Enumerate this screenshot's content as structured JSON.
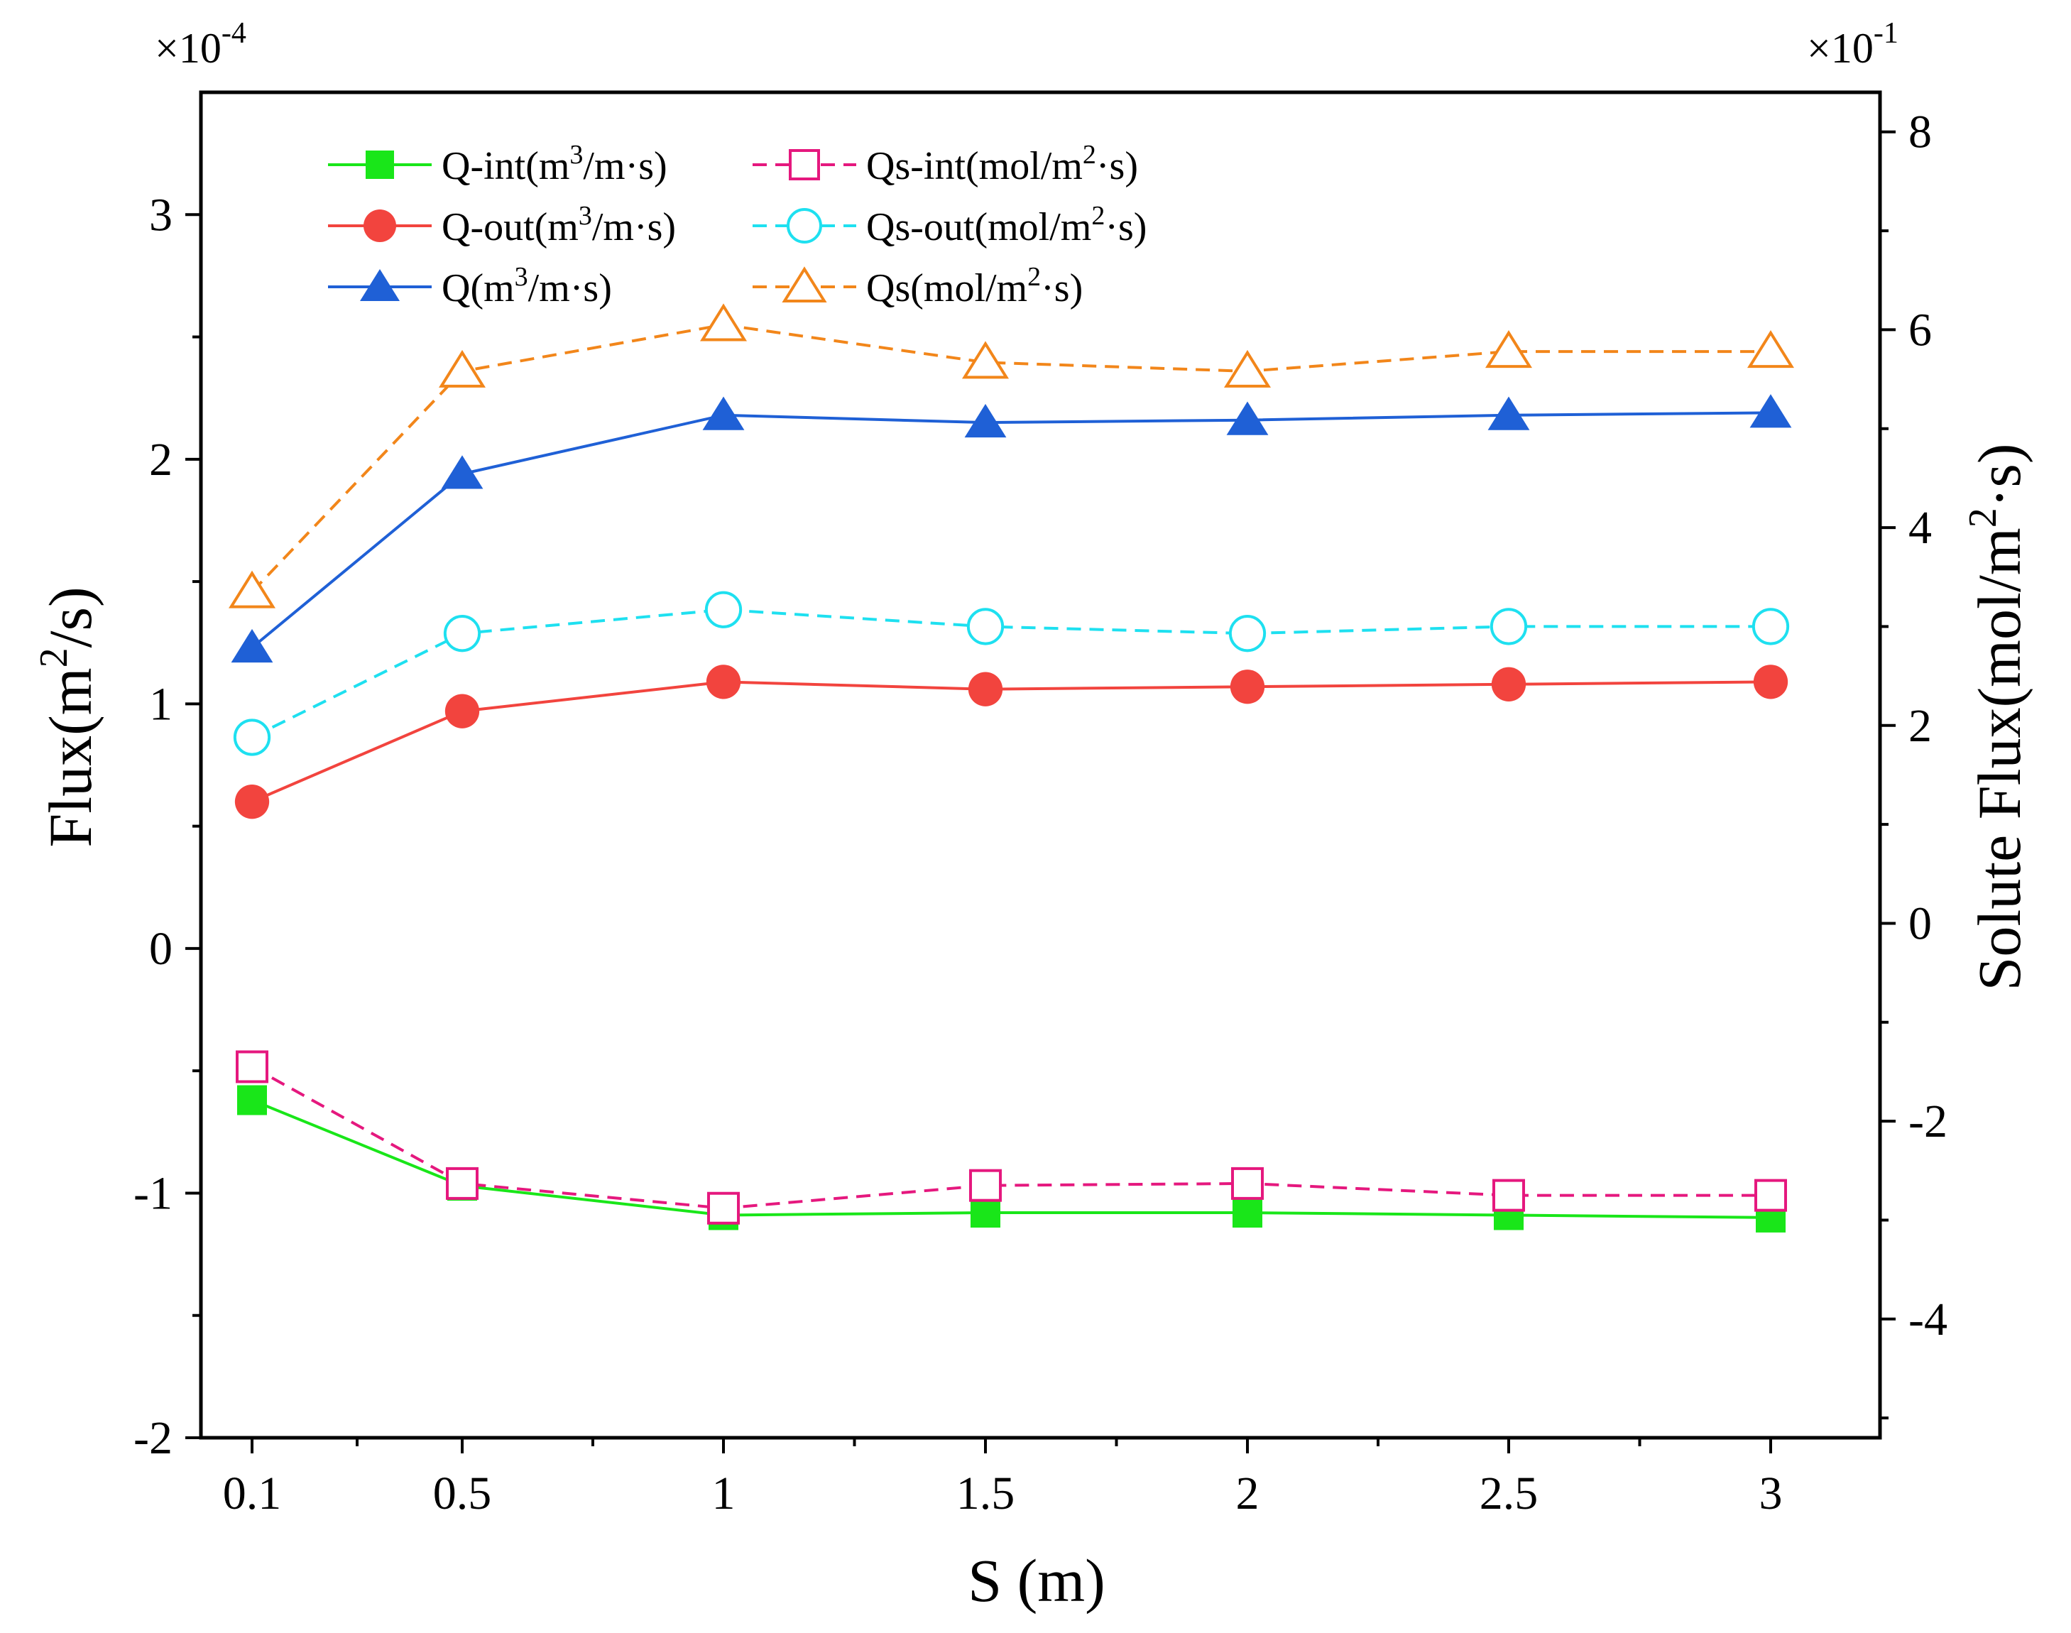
{
  "chart_data": {
    "type": "line",
    "categories": [
      "0.1",
      "0.5",
      "1",
      "1.5",
      "2",
      "2.5",
      "3"
    ],
    "xlabel": "S (m)",
    "ylabel_left": {
      "base": "Flux(m",
      "sup": "2",
      "rest": "/s)"
    },
    "ylabel_right": {
      "base": "Solute  Flux(mol/m",
      "sup": "2",
      "rest": "·s)"
    },
    "left_axis": {
      "range": [
        -2,
        3.5
      ],
      "ticks": [
        "3",
        "2",
        "1",
        "0",
        "-1",
        "-2"
      ],
      "tick_values": [
        3,
        2,
        1,
        0,
        -1,
        -2
      ],
      "multiplier": {
        "base": "×10",
        "exp": "-4"
      }
    },
    "right_axis": {
      "range": [
        -5.2,
        8.4
      ],
      "ticks": [
        "8",
        "6",
        "4",
        "2",
        "0",
        "-2",
        "-4"
      ],
      "tick_values": [
        8,
        6,
        4,
        2,
        0,
        -2,
        -4
      ],
      "multiplier": {
        "base": "×10",
        "exp": "-1"
      }
    },
    "series": [
      {
        "id": "q-int",
        "name": "Q-int(m³/m·s)",
        "legend": {
          "pre": "Q-int(m",
          "sup": "3",
          "post": "/m·s)"
        },
        "axis": "left",
        "marker": "square",
        "filled": true,
        "dashed": false,
        "color": "#19e619",
        "values": [
          -0.62,
          -0.97,
          -1.09,
          -1.08,
          -1.08,
          -1.09,
          -1.1
        ]
      },
      {
        "id": "q-out",
        "name": "Q-out(m³/m·s)",
        "legend": {
          "pre": "Q-out(m",
          "sup": "3",
          "post": "/m·s)"
        },
        "axis": "left",
        "marker": "circle",
        "filled": true,
        "dashed": false,
        "color": "#f2443e",
        "values": [
          0.6,
          0.97,
          1.09,
          1.06,
          1.07,
          1.08,
          1.09
        ]
      },
      {
        "id": "q",
        "name": "Q(m³/m·s)",
        "legend": {
          "pre": "Q(m",
          "sup": "3",
          "post": "/m·s)"
        },
        "axis": "left",
        "marker": "triangle",
        "filled": true,
        "dashed": false,
        "color": "#1f60d6",
        "values": [
          1.23,
          1.94,
          2.18,
          2.15,
          2.16,
          2.18,
          2.19
        ]
      },
      {
        "id": "qs-int",
        "name": "Qs-int(mol/m²·s)",
        "legend": {
          "pre": "Qs-int(mol/m",
          "sup": "2",
          "post": "·s)"
        },
        "axis": "right",
        "marker": "square",
        "filled": false,
        "dashed": true,
        "color": "#e5187e",
        "values": [
          -1.45,
          -2.63,
          -2.88,
          -2.65,
          -2.63,
          -2.75,
          -2.75
        ]
      },
      {
        "id": "qs-out",
        "name": "Qs-out(mol/m²·s)",
        "legend": {
          "pre": "Qs-out(mol/m",
          "sup": "2",
          "post": "·s)"
        },
        "axis": "right",
        "marker": "circle",
        "filled": false,
        "dashed": true,
        "color": "#1ee0f0",
        "values": [
          1.88,
          2.93,
          3.17,
          3.0,
          2.93,
          3.0,
          3.0
        ]
      },
      {
        "id": "qs",
        "name": "Qs(mol/m²·s)",
        "legend": {
          "pre": "Qs(mol/m",
          "sup": "2",
          "post": "·s)"
        },
        "axis": "right",
        "marker": "triangle",
        "filled": false,
        "dashed": true,
        "color": "#f2861a",
        "values": [
          3.35,
          5.58,
          6.05,
          5.67,
          5.58,
          5.78,
          5.78
        ]
      }
    ],
    "legend_position": "top-left",
    "grid": false
  }
}
